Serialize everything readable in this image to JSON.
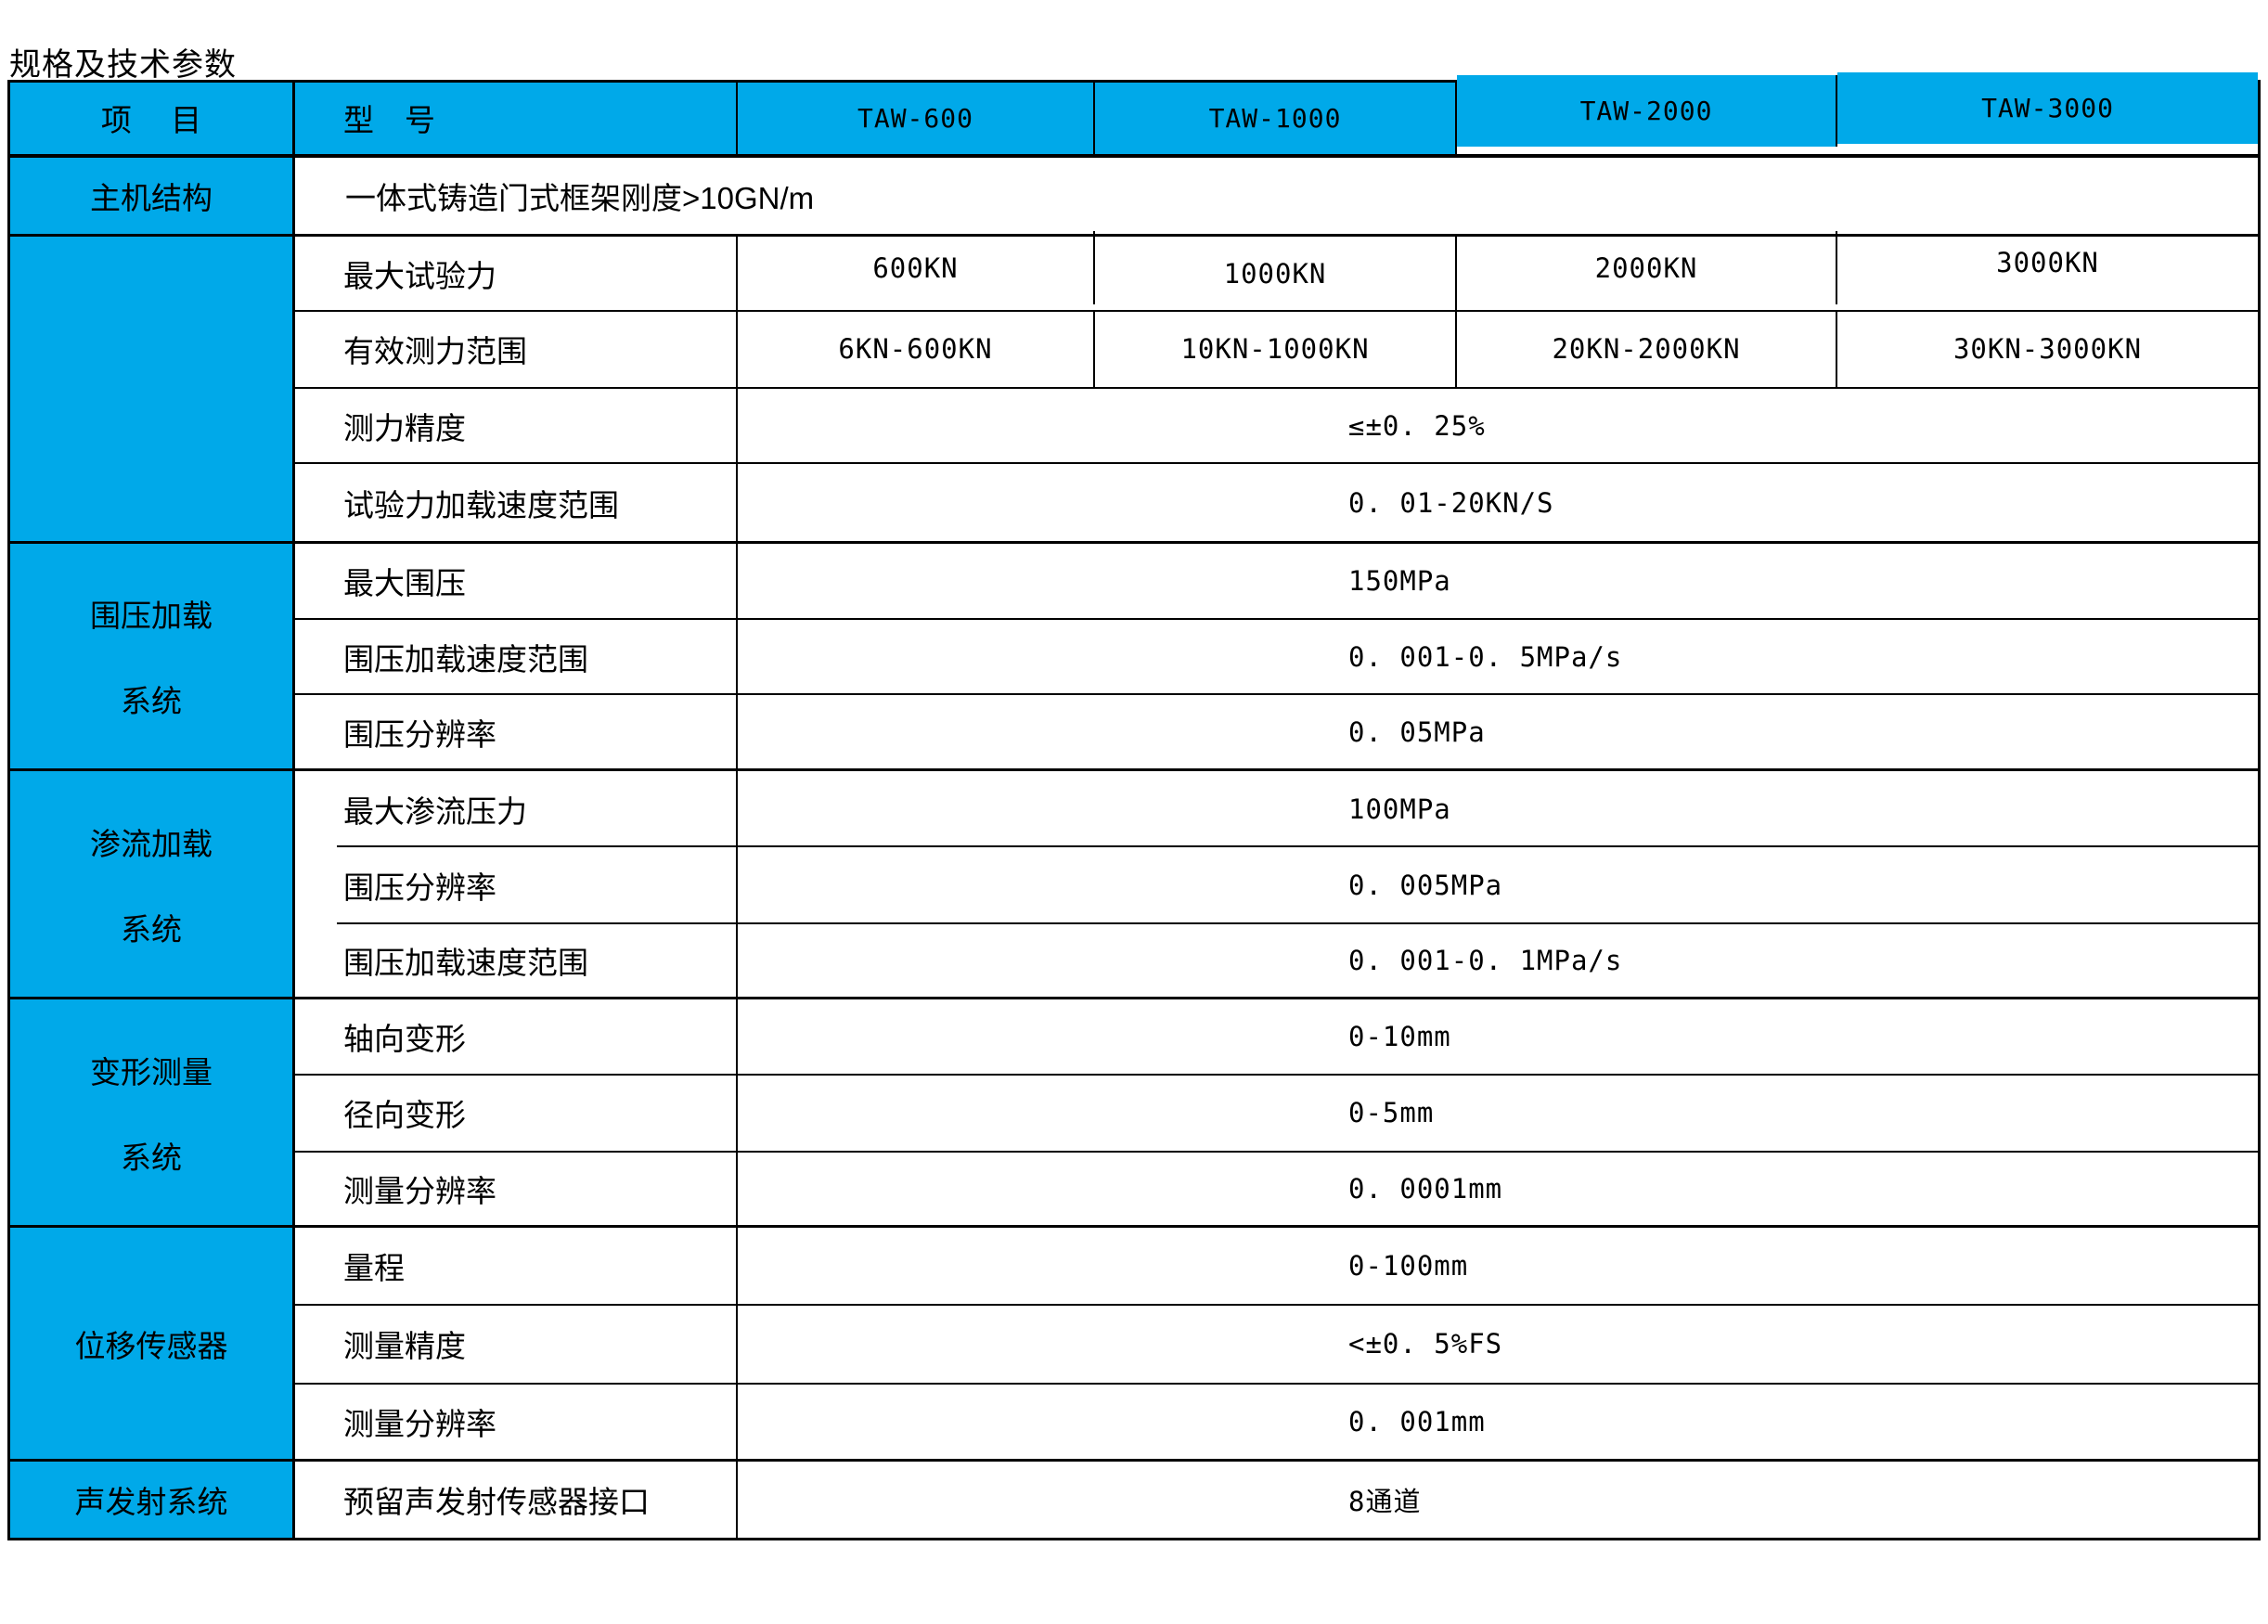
{
  "title": "规格及技术参数",
  "colors": {
    "accent": "#00A9E9",
    "line": "#000000",
    "text": "#000000",
    "background": "#FFFFFF"
  },
  "table": {
    "header": {
      "item": "项　 目",
      "model": "型　号",
      "models": [
        "TAW-600",
        "TAW-1000",
        "TAW-2000",
        "TAW-3000"
      ]
    },
    "main_structure": {
      "group": "主机结构",
      "value": "一体式铸造门式框架刚度>10GN/m"
    },
    "force": {
      "max_force": {
        "label": "最大试验力",
        "values": [
          "600KN",
          "1000KN",
          "2000KN",
          "3000KN"
        ]
      },
      "effective_range": {
        "label": "有效测力范围",
        "values": [
          "6KN-600KN",
          "10KN-1000KN",
          "20KN-2000KN",
          "30KN-3000KN"
        ]
      },
      "accuracy": {
        "label": "测力精度",
        "value": "≤±0. 25%"
      },
      "loading_speed": {
        "label": "试验力加载速度范围",
        "value": "0. 01-20KN/S"
      }
    },
    "confining": {
      "group": [
        "围压加载",
        "系统"
      ],
      "rows": [
        {
          "label": "最大围压",
          "value": "150MPa"
        },
        {
          "label": "围压加载速度范围",
          "value": "0. 001-0. 5MPa/s"
        },
        {
          "label": "围压分辨率",
          "value": "0. 05MPa"
        }
      ]
    },
    "seepage": {
      "group": [
        "渗流加载",
        "系统"
      ],
      "rows": [
        {
          "label": "最大渗流压力",
          "value": "100MPa"
        },
        {
          "label": "围压分辨率",
          "value": "0. 005MPa"
        },
        {
          "label": "围压加载速度范围",
          "value": "0. 001-0. 1MPa/s"
        }
      ]
    },
    "deformation": {
      "group": [
        "变形测量",
        "系统"
      ],
      "rows": [
        {
          "label": "轴向变形",
          "value": "0-10mm"
        },
        {
          "label": "径向变形",
          "value": "0-5mm"
        },
        {
          "label": "测量分辨率",
          "value": "0. 0001mm"
        }
      ]
    },
    "displacement": {
      "group": [
        "位移传感器"
      ],
      "rows": [
        {
          "label": "量程",
          "value": "0-100mm"
        },
        {
          "label": "测量精度",
          "value": "<±0. 5%FS"
        },
        {
          "label": "测量分辨率",
          "value": "0. 001mm"
        }
      ]
    },
    "acoustic": {
      "group": [
        "声发射系统"
      ],
      "rows": [
        {
          "label": "预留声发射传感器接口",
          "value": "8通道"
        }
      ]
    }
  }
}
